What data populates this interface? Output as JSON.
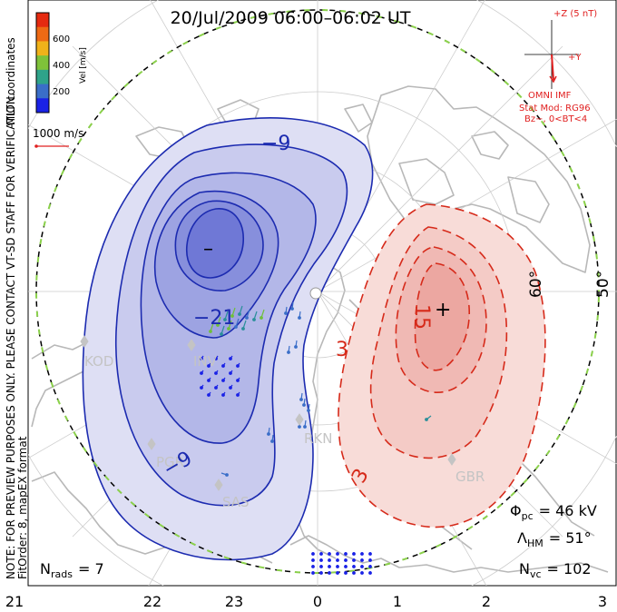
{
  "title": "20/Jul/2009 06:00–06:02 UT",
  "side_notes": {
    "line1": "NOTE: FOR PREVIEW PURPOSES ONLY. PLEASE CONTACT VT-SD STAFF FOR VERIFICATION.",
    "line2": "FitOrder: 8,  mapEX format",
    "mlt_coords": "MLT coordinates"
  },
  "color_scale": {
    "label": "Vel [m/s]",
    "ticks": [
      "200",
      "400",
      "600"
    ],
    "colors": [
      "#1a22e6",
      "#3a6ec8",
      "#2fa38a",
      "#7fc23a",
      "#f0b21a",
      "#ee6a14",
      "#e52a10"
    ]
  },
  "velocity_ref": {
    "label": "1000 m/s",
    "color": "#e02020"
  },
  "imf": {
    "top_label": "+Z (5 nT)",
    "y_label": "+Y",
    "omni": "OMNI IMF",
    "stat_mod": "Stat Mod: RG96",
    "bz_bt": "Bz−, 0<BT<4",
    "color": "#e02020"
  },
  "latitudes": [
    "60°",
    "50°"
  ],
  "contours": {
    "neg": [
      "−9",
      "−21",
      "−9"
    ],
    "pos": [
      "15",
      "3",
      "3"
    ],
    "min_marker": "–",
    "max_marker": "+",
    "neg_color": "#1c2bb0",
    "pos_color": "#d62a1a"
  },
  "stations": [
    "KOD",
    "INV",
    "PGR",
    "SAS",
    "RKN",
    "GBR"
  ],
  "stats": {
    "phi_pc_label": "Φ",
    "phi_pc_sub": "pc",
    "phi_pc_value": "= 46 kV",
    "lambda_hm_label": "Λ",
    "lambda_hm_sub": "HM",
    "lambda_hm_value": "= 51°",
    "n_vc_label": "N",
    "n_vc_sub": "vc",
    "n_vc_value": "= 102",
    "n_rads_label": "N",
    "n_rads_sub": "rads",
    "n_rads_value": "= 7"
  },
  "mlt_ticks": [
    "21",
    "22",
    "23",
    "0",
    "1",
    "2",
    "3"
  ]
}
